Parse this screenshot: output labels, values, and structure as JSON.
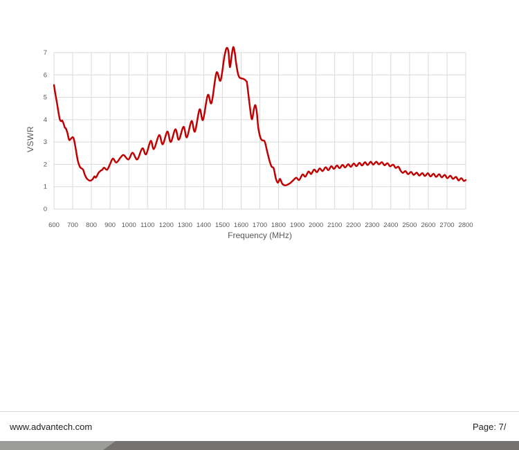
{
  "chart_data": {
    "type": "line",
    "title": "",
    "xlabel": "Frequency (MHz)",
    "ylabel": "VSWR",
    "xlim": [
      600,
      2800
    ],
    "ylim": [
      0,
      7
    ],
    "x_ticks": [
      600,
      700,
      800,
      900,
      1000,
      1100,
      1200,
      1300,
      1400,
      1500,
      1600,
      1700,
      1800,
      1900,
      2000,
      2100,
      2200,
      2300,
      2400,
      2500,
      2600,
      2700,
      2800
    ],
    "y_ticks": [
      0,
      1,
      2,
      3,
      4,
      5,
      6,
      7
    ],
    "grid": true,
    "legend": "none",
    "gridline_color": "#d9d9d9",
    "tick_label_color": "#595959",
    "line_color": "#c00000",
    "line_width": 2.5,
    "series": [
      {
        "name": "VSWR",
        "points": [
          [
            600,
            5.55
          ],
          [
            608,
            5.12
          ],
          [
            616,
            4.75
          ],
          [
            624,
            4.33
          ],
          [
            631,
            4.02
          ],
          [
            638,
            3.93
          ],
          [
            644,
            3.96
          ],
          [
            650,
            3.85
          ],
          [
            658,
            3.65
          ],
          [
            664,
            3.6
          ],
          [
            672,
            3.4
          ],
          [
            681,
            3.1
          ],
          [
            690,
            3.14
          ],
          [
            700,
            3.22
          ],
          [
            707,
            3.11
          ],
          [
            716,
            2.7
          ],
          [
            727,
            2.18
          ],
          [
            738,
            1.9
          ],
          [
            747,
            1.82
          ],
          [
            756,
            1.76
          ],
          [
            764,
            1.55
          ],
          [
            774,
            1.38
          ],
          [
            784,
            1.3
          ],
          [
            794,
            1.27
          ],
          [
            806,
            1.33
          ],
          [
            816,
            1.46
          ],
          [
            824,
            1.41
          ],
          [
            838,
            1.62
          ],
          [
            850,
            1.72
          ],
          [
            858,
            1.76
          ],
          [
            868,
            1.85
          ],
          [
            884,
            1.76
          ],
          [
            900,
            2.02
          ],
          [
            915,
            2.26
          ],
          [
            933,
            2.08
          ],
          [
            955,
            2.3
          ],
          [
            972,
            2.42
          ],
          [
            998,
            2.22
          ],
          [
            1020,
            2.52
          ],
          [
            1045,
            2.22
          ],
          [
            1072,
            2.72
          ],
          [
            1092,
            2.45
          ],
          [
            1117,
            3.05
          ],
          [
            1134,
            2.69
          ],
          [
            1162,
            3.31
          ],
          [
            1181,
            2.9
          ],
          [
            1206,
            3.47
          ],
          [
            1224,
            3.0
          ],
          [
            1249,
            3.57
          ],
          [
            1267,
            3.1
          ],
          [
            1292,
            3.68
          ],
          [
            1310,
            3.21
          ],
          [
            1335,
            3.94
          ],
          [
            1353,
            3.47
          ],
          [
            1378,
            4.46
          ],
          [
            1396,
            3.99
          ],
          [
            1422,
            5.1
          ],
          [
            1442,
            4.75
          ],
          [
            1468,
            6.1
          ],
          [
            1490,
            5.75
          ],
          [
            1510,
            6.8
          ],
          [
            1522,
            7.2
          ],
          [
            1532,
            7.05
          ],
          [
            1540,
            6.35
          ],
          [
            1550,
            6.9
          ],
          [
            1558,
            7.25
          ],
          [
            1566,
            7.0
          ],
          [
            1572,
            6.6
          ],
          [
            1582,
            6.1
          ],
          [
            1590,
            5.9
          ],
          [
            1600,
            5.85
          ],
          [
            1614,
            5.82
          ],
          [
            1628,
            5.72
          ],
          [
            1632,
            5.6
          ],
          [
            1645,
            4.7
          ],
          [
            1657,
            4.02
          ],
          [
            1668,
            4.45
          ],
          [
            1676,
            4.65
          ],
          [
            1684,
            4.3
          ],
          [
            1692,
            3.62
          ],
          [
            1703,
            3.2
          ],
          [
            1712,
            3.08
          ],
          [
            1726,
            3.02
          ],
          [
            1740,
            2.55
          ],
          [
            1752,
            2.15
          ],
          [
            1763,
            1.9
          ],
          [
            1774,
            1.82
          ],
          [
            1786,
            1.35
          ],
          [
            1797,
            1.18
          ],
          [
            1808,
            1.35
          ],
          [
            1820,
            1.13
          ],
          [
            1835,
            1.06
          ],
          [
            1850,
            1.1
          ],
          [
            1865,
            1.18
          ],
          [
            1880,
            1.3
          ],
          [
            1895,
            1.4
          ],
          [
            1910,
            1.3
          ],
          [
            1928,
            1.55
          ],
          [
            1943,
            1.45
          ],
          [
            1960,
            1.68
          ],
          [
            1974,
            1.57
          ],
          [
            1990,
            1.77
          ],
          [
            2005,
            1.65
          ],
          [
            2020,
            1.82
          ],
          [
            2035,
            1.7
          ],
          [
            2052,
            1.87
          ],
          [
            2066,
            1.74
          ],
          [
            2082,
            1.92
          ],
          [
            2096,
            1.8
          ],
          [
            2112,
            1.95
          ],
          [
            2126,
            1.83
          ],
          [
            2142,
            1.98
          ],
          [
            2156,
            1.86
          ],
          [
            2172,
            2.01
          ],
          [
            2186,
            1.89
          ],
          [
            2202,
            2.04
          ],
          [
            2216,
            1.92
          ],
          [
            2232,
            2.07
          ],
          [
            2246,
            1.95
          ],
          [
            2262,
            2.1
          ],
          [
            2276,
            1.97
          ],
          [
            2292,
            2.12
          ],
          [
            2306,
            1.99
          ],
          [
            2322,
            2.12
          ],
          [
            2336,
            2.0
          ],
          [
            2352,
            2.1
          ],
          [
            2366,
            1.96
          ],
          [
            2382,
            2.05
          ],
          [
            2396,
            1.91
          ],
          [
            2412,
            1.99
          ],
          [
            2426,
            1.84
          ],
          [
            2440,
            1.9
          ],
          [
            2452,
            1.72
          ],
          [
            2464,
            1.62
          ],
          [
            2478,
            1.7
          ],
          [
            2492,
            1.56
          ],
          [
            2508,
            1.66
          ],
          [
            2522,
            1.53
          ],
          [
            2538,
            1.63
          ],
          [
            2552,
            1.5
          ],
          [
            2568,
            1.61
          ],
          [
            2582,
            1.48
          ],
          [
            2598,
            1.6
          ],
          [
            2612,
            1.46
          ],
          [
            2628,
            1.58
          ],
          [
            2642,
            1.44
          ],
          [
            2658,
            1.56
          ],
          [
            2672,
            1.42
          ],
          [
            2688,
            1.53
          ],
          [
            2702,
            1.38
          ],
          [
            2718,
            1.49
          ],
          [
            2732,
            1.35
          ],
          [
            2748,
            1.44
          ],
          [
            2762,
            1.28
          ],
          [
            2776,
            1.38
          ],
          [
            2790,
            1.26
          ],
          [
            2800,
            1.3
          ]
        ]
      }
    ]
  },
  "footer": {
    "website": "www.advantech.com",
    "page_label": "Page: 7/"
  },
  "colors": {
    "footer_bar_dark": "#74736f",
    "footer_bar_light": "#9c9c9b",
    "divider": "#d9d9d9"
  }
}
